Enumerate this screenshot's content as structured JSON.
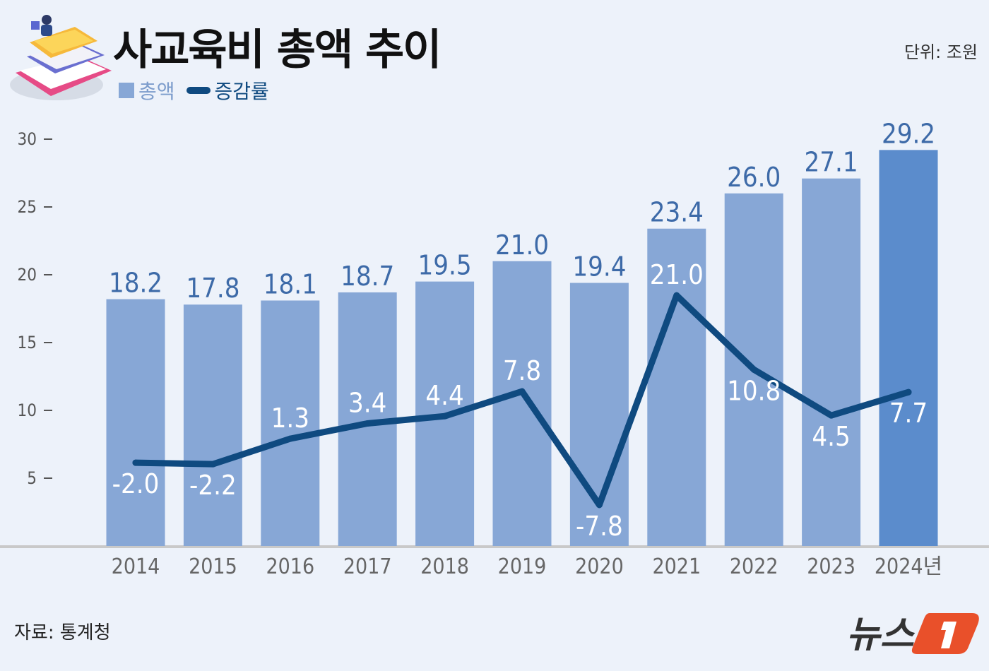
{
  "header": {
    "title": "사교육비 총액 추이",
    "unit": "단위: 조원"
  },
  "legend": [
    {
      "label": "총액",
      "color": "#87a7d6"
    },
    {
      "label": "증감률",
      "color": "#0f4a80"
    }
  ],
  "source": "자료: 통계청",
  "logo": {
    "text": "뉴스1",
    "brand_color": "#e9502a"
  },
  "chart_data": {
    "type": "bar+line",
    "categories": [
      "2014",
      "2015",
      "2016",
      "2017",
      "2018",
      "2019",
      "2020",
      "2021",
      "2022",
      "2023",
      "2024년"
    ],
    "series": [
      {
        "name": "총액",
        "type": "bar",
        "values": [
          18.2,
          17.8,
          18.1,
          18.7,
          19.5,
          21.0,
          19.4,
          23.4,
          26.0,
          27.1,
          29.2
        ],
        "labels": [
          "18.2",
          "17.8",
          "18.1",
          "18.7",
          "19.5",
          "21.0",
          "19.4",
          "23.4",
          "26.0",
          "27.1",
          "29.2"
        ],
        "color": "#87a7d6",
        "highlight_color": "#5b8ccc"
      },
      {
        "name": "증감률",
        "type": "line",
        "values": [
          -2.0,
          -2.2,
          1.3,
          3.4,
          4.4,
          7.8,
          -7.8,
          21.0,
          10.8,
          4.5,
          7.7
        ],
        "labels": [
          "-2.0",
          "-2.2",
          "1.3",
          "3.4",
          "4.4",
          "7.8",
          "-7.8",
          "21.0",
          "10.8",
          "4.5",
          "7.7"
        ],
        "color": "#0f4a80"
      }
    ],
    "yticks": [
      5,
      10,
      15,
      20,
      25,
      30
    ],
    "ylim": [
      0,
      30
    ],
    "grid": false
  }
}
